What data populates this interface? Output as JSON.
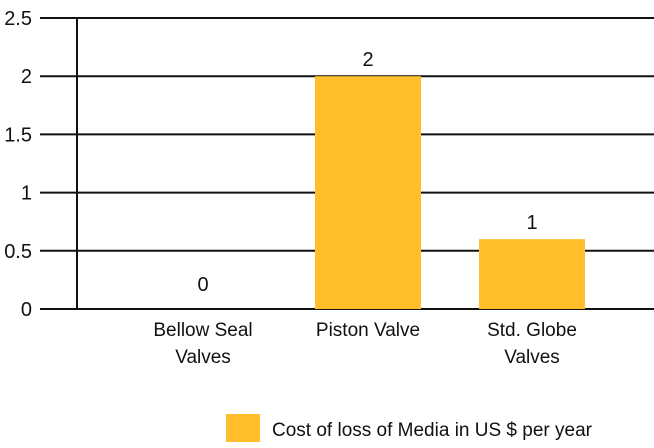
{
  "chart_data": {
    "type": "bar",
    "categories": [
      [
        "Bellow Seal",
        "Valves"
      ],
      [
        "Piston Valve"
      ],
      [
        "Std. Globe",
        "Valves"
      ]
    ],
    "values": [
      0,
      2,
      0.6
    ],
    "data_labels": [
      "0",
      "2",
      "1"
    ],
    "y_ticks": [
      "0",
      "0.5",
      "1",
      "1.5",
      "2",
      "2.5"
    ],
    "ylim": [
      0,
      2.5
    ],
    "grid": true,
    "legend": {
      "position": "bottom-right",
      "entries": [
        {
          "label": "Cost of loss of Media in US $ per year",
          "color": "#FFBE2A"
        }
      ]
    },
    "colors": {
      "bar": "#FFBE2A",
      "grid": "#111111",
      "axis": "#111111"
    }
  }
}
